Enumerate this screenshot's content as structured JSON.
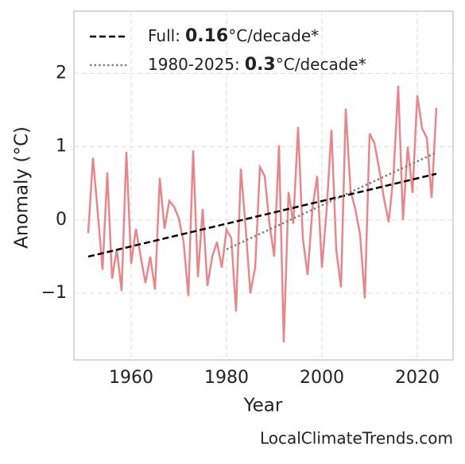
{
  "chart_data": {
    "type": "line",
    "xlabel": "Year",
    "ylabel": "Anomaly (°C)",
    "source": "LocalClimateTrends.com",
    "xlim": [
      1948,
      2027.5
    ],
    "xticks": [
      1960,
      1980,
      2000,
      2020
    ],
    "ylim": [
      -1.91,
      2.85
    ],
    "yticks": [
      {
        "value": -1,
        "label": "−1"
      },
      0,
      1,
      2
    ],
    "grid": true,
    "legend": "upper left",
    "series": [
      {
        "color": "#e8878b",
        "style": "solid",
        "x": [
          1951,
          1952,
          1953,
          1954,
          1955,
          1956,
          1957,
          1958,
          1959,
          1960,
          1961,
          1962,
          1963,
          1964,
          1965,
          1966,
          1967,
          1968,
          1969,
          1970,
          1971,
          1972,
          1973,
          1974,
          1975,
          1976,
          1977,
          1978,
          1979,
          1980,
          1981,
          1982,
          1983,
          1984,
          1985,
          1986,
          1987,
          1988,
          1989,
          1990,
          1991,
          1992,
          1993,
          1994,
          1995,
          1996,
          1997,
          1998,
          1999,
          2000,
          2001,
          2002,
          2003,
          2004,
          2005,
          2006,
          2007,
          2008,
          2009,
          2010,
          2011,
          2012,
          2013,
          2014,
          2015,
          2016,
          2017,
          2018,
          2019,
          2020,
          2021,
          2022,
          2023,
          2024
        ],
        "values": [
          -0.18,
          0.85,
          0.1,
          -0.68,
          0.65,
          -0.8,
          -0.4,
          -0.97,
          0.93,
          -0.6,
          -0.12,
          -0.5,
          -0.86,
          -0.5,
          -0.95,
          0.57,
          -0.12,
          0.26,
          0.18,
          0.02,
          -0.3,
          -1.04,
          0.95,
          -0.78,
          0.15,
          -0.9,
          -0.5,
          -0.3,
          -0.65,
          -0.13,
          -0.25,
          -1.25,
          0.7,
          -0.1,
          -1.0,
          -0.65,
          0.72,
          0.6,
          -0.05,
          -0.5,
          1.02,
          -1.67,
          0.38,
          -0.05,
          1.27,
          -0.25,
          -0.75,
          0.15,
          0.6,
          -0.65,
          0.15,
          1.23,
          -0.4,
          -0.92,
          1.52,
          0.4,
          0.15,
          -0.2,
          -1.07,
          1.18,
          1.05,
          0.7,
          0.3,
          -0.03,
          0.6,
          1.83,
          0.0,
          1.0,
          0.37,
          1.7,
          1.25,
          1.12,
          0.3,
          1.53
        ]
      },
      {
        "label_parts": [
          "Full:",
          "0.16",
          "°C/decade*"
        ],
        "color": "#000000",
        "style": "dashed",
        "x": [
          1951,
          2024
        ],
        "values": [
          -0.5,
          0.63
        ]
      },
      {
        "label_parts": [
          "1980-2025:",
          "0.3",
          "°C/decade*"
        ],
        "color": "#808080",
        "style": "dotted",
        "x": [
          1980,
          2024
        ],
        "values": [
          -0.4,
          0.92
        ]
      }
    ]
  }
}
